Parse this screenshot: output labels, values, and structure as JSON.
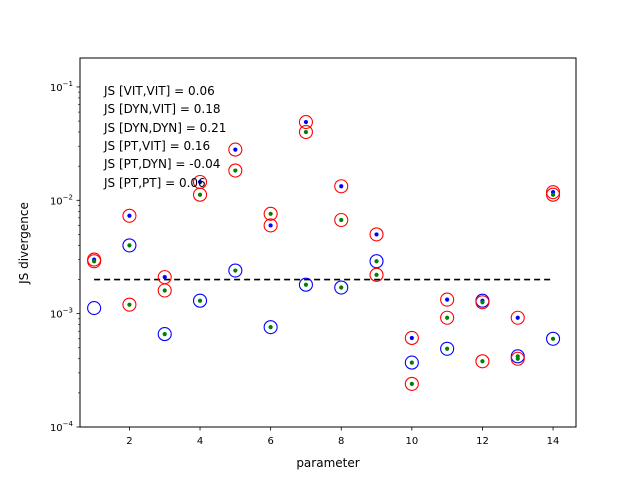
{
  "chart_data": {
    "type": "scatter",
    "xlabel": "parameter",
    "ylabel": "JS divergence",
    "xlim": [
      0.6,
      14.65
    ],
    "ylim": [
      0.0001,
      0.18
    ],
    "yscale": "log",
    "xticks": [
      2,
      4,
      6,
      8,
      10,
      12,
      14
    ],
    "yticks": [
      {
        "value": 0.0001,
        "base": "10",
        "exp": "−4"
      },
      {
        "value": 0.001,
        "base": "10",
        "exp": "−3"
      },
      {
        "value": 0.01,
        "base": "10",
        "exp": "−2"
      },
      {
        "value": 0.1,
        "base": "10",
        "exp": "−1"
      }
    ],
    "grid": false,
    "threshold": {
      "y": 0.002,
      "x_range": [
        1,
        14
      ],
      "style": "dashed",
      "color": "#000000"
    },
    "annotations": [
      "JS [VIT,VIT] = 0.06",
      "JS [DYN,VIT] = 0.18",
      "JS [DYN,DYN] = 0.21",
      "JS [PT,VIT] = 0.16",
      "JS [PT,DYN] = -0.04",
      "JS [PT,PT] = 0.06"
    ],
    "colors": {
      "blue": "#0000ff",
      "red": "#ff0000",
      "green": "#008000"
    },
    "series": [
      {
        "marker": "open-circle",
        "color": "#0000ff",
        "points": [
          [
            1,
            0.00112
          ],
          [
            2,
            0.004
          ],
          [
            3,
            0.00066
          ],
          [
            4,
            0.0013
          ],
          [
            5,
            0.0024
          ],
          [
            6,
            0.00076
          ],
          [
            7,
            0.0018
          ],
          [
            8,
            0.0017
          ],
          [
            9,
            0.0029
          ],
          [
            10,
            0.00037
          ],
          [
            11,
            0.00049
          ],
          [
            12,
            0.0013
          ],
          [
            13,
            0.00042
          ],
          [
            14,
            0.0006
          ]
        ]
      },
      {
        "marker": "open-circle",
        "color": "#ff0000",
        "points": [
          [
            1,
            0.003
          ],
          [
            1,
            0.0029
          ],
          [
            2,
            0.0073
          ],
          [
            2,
            0.0012
          ],
          [
            3,
            0.0021
          ],
          [
            3,
            0.0016
          ],
          [
            4,
            0.0145
          ],
          [
            4,
            0.0112
          ],
          [
            5,
            0.028
          ],
          [
            5,
            0.0183
          ],
          [
            6,
            0.0076
          ],
          [
            6,
            0.006
          ],
          [
            7,
            0.049
          ],
          [
            7,
            0.04
          ],
          [
            8,
            0.0133
          ],
          [
            8,
            0.0067
          ],
          [
            9,
            0.005
          ],
          [
            9,
            0.0022
          ],
          [
            10,
            0.00061
          ],
          [
            10,
            0.00024
          ],
          [
            11,
            0.00133
          ],
          [
            11,
            0.00092
          ],
          [
            12,
            0.00126
          ],
          [
            12,
            0.00038
          ],
          [
            13,
            0.00092
          ],
          [
            13,
            0.0004
          ],
          [
            14,
            0.0118
          ],
          [
            14,
            0.0112
          ]
        ]
      },
      {
        "marker": "dot",
        "color": "#0000ff",
        "points": [
          [
            1,
            0.003
          ],
          [
            2,
            0.0073
          ],
          [
            3,
            0.0021
          ],
          [
            4,
            0.0145
          ],
          [
            5,
            0.028
          ],
          [
            6,
            0.006
          ],
          [
            7,
            0.049
          ],
          [
            8,
            0.0133
          ],
          [
            9,
            0.005
          ],
          [
            10,
            0.00061
          ],
          [
            11,
            0.00133
          ],
          [
            12,
            0.0013
          ],
          [
            13,
            0.00092
          ],
          [
            14,
            0.0118
          ]
        ]
      },
      {
        "marker": "dot",
        "color": "#008000",
        "points": [
          [
            1,
            0.0029
          ],
          [
            2,
            0.004
          ],
          [
            2,
            0.0012
          ],
          [
            3,
            0.00066
          ],
          [
            3,
            0.0016
          ],
          [
            4,
            0.0013
          ],
          [
            4,
            0.0112
          ],
          [
            5,
            0.0024
          ],
          [
            5,
            0.0183
          ],
          [
            6,
            0.00076
          ],
          [
            6,
            0.0076
          ],
          [
            7,
            0.0018
          ],
          [
            7,
            0.04
          ],
          [
            8,
            0.0017
          ],
          [
            8,
            0.0067
          ],
          [
            9,
            0.0029
          ],
          [
            9,
            0.0022
          ],
          [
            10,
            0.00037
          ],
          [
            10,
            0.00024
          ],
          [
            11,
            0.00049
          ],
          [
            11,
            0.00092
          ],
          [
            12,
            0.00126
          ],
          [
            12,
            0.00038
          ],
          [
            13,
            0.00042
          ],
          [
            13,
            0.0004
          ],
          [
            14,
            0.0006
          ],
          [
            14,
            0.0112
          ]
        ]
      }
    ]
  }
}
